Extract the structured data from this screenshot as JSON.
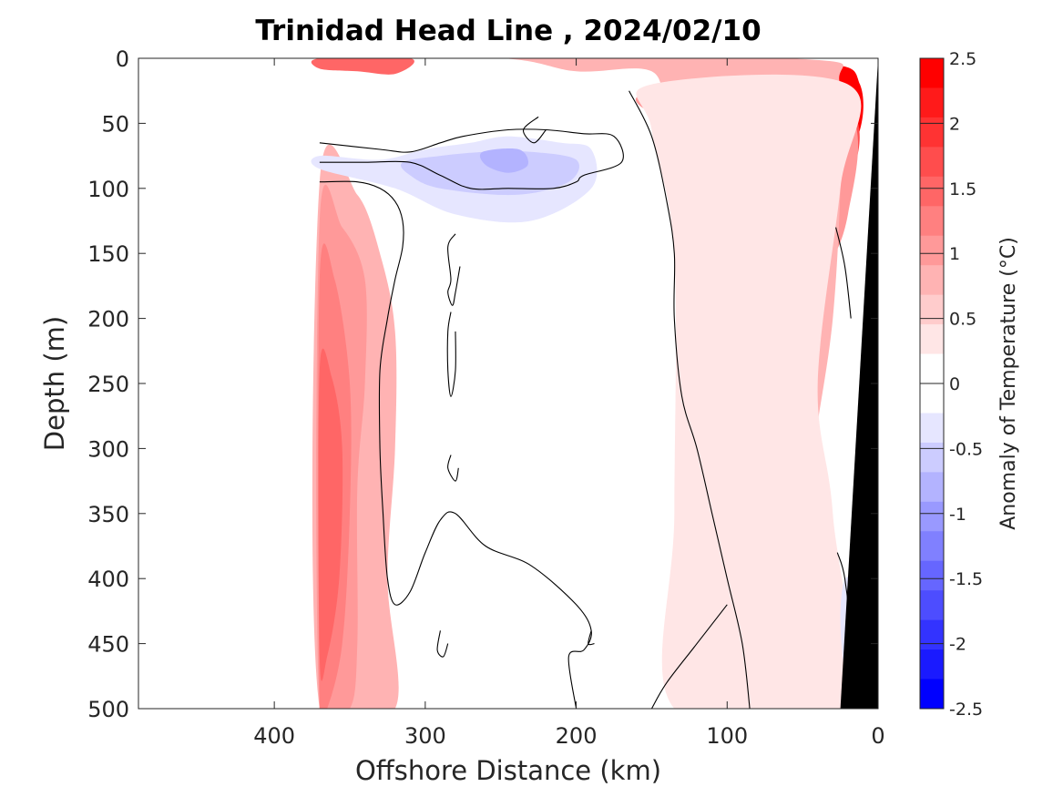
{
  "chart_data": {
    "type": "heatmap",
    "title": "Trinidad Head Line , 2024/02/10",
    "xlabel": "Offshore Distance (km)",
    "ylabel": "Depth (m)",
    "colorbar_label": "Anomaly of Temperature (°C)",
    "xlim": [
      490,
      0
    ],
    "ylim": [
      0,
      500
    ],
    "x_reversed": true,
    "y_reversed": true,
    "xticks": [
      "400",
      "300",
      "200",
      "100",
      "0"
    ],
    "xtick_values": [
      400,
      300,
      200,
      100,
      0
    ],
    "yticks": [
      "0",
      "50",
      "100",
      "150",
      "200",
      "250",
      "300",
      "350",
      "400",
      "450",
      "500"
    ],
    "ytick_values": [
      0,
      50,
      100,
      150,
      200,
      250,
      300,
      350,
      400,
      450,
      500
    ],
    "colorbar": {
      "range": [
        -2.5,
        2.5
      ],
      "step": 0.25,
      "tick_labels": [
        "2.5",
        "2",
        "1.5",
        "1",
        "0.5",
        "0",
        "-0.5",
        "-1",
        "-1.5",
        "-2",
        "-2.5"
      ],
      "tick_values": [
        2.5,
        2,
        1.5,
        1,
        0.5,
        0,
        -0.5,
        -1,
        -1.5,
        -2,
        -2.5
      ],
      "colors_top_to_bottom": [
        "#ff0000",
        "#ff1a1a",
        "#ff3333",
        "#ff4d4d",
        "#ff6666",
        "#ff8080",
        "#ff9999",
        "#ffb3b3",
        "#ffcccc",
        "#ffe6e6",
        "#ffffff",
        "#ffffff",
        "#e6e6ff",
        "#ccccff",
        "#b3b3ff",
        "#9999ff",
        "#8080ff",
        "#6666ff",
        "#4d4dff",
        "#3333ff",
        "#1a1aff",
        "#0000ff"
      ]
    },
    "data_extent_km": [
      370,
      0
    ],
    "field_regions": [
      {
        "level": 1.5,
        "points": [
          [
            370,
            0
          ],
          [
            310,
            0
          ],
          [
            320,
            12
          ],
          [
            345,
            10
          ],
          [
            370,
            8
          ]
        ]
      },
      {
        "level": 2.5,
        "points": [
          [
            115,
            10
          ],
          [
            30,
            5
          ],
          [
            12,
            20
          ],
          [
            12,
            55
          ],
          [
            30,
            95
          ],
          [
            55,
            95
          ],
          [
            75,
            70
          ],
          [
            100,
            50
          ],
          [
            115,
            30
          ]
        ]
      },
      {
        "level": 1.75,
        "points": [
          [
            125,
            30
          ],
          [
            100,
            55
          ],
          [
            80,
            85
          ],
          [
            55,
            110
          ],
          [
            35,
            110
          ],
          [
            15,
            80
          ],
          [
            15,
            45
          ],
          [
            40,
            30
          ]
        ]
      },
      {
        "level": 1.0,
        "points": [
          [
            160,
            30
          ],
          [
            130,
            60
          ],
          [
            110,
            110
          ],
          [
            100,
            150
          ],
          [
            80,
            200
          ],
          [
            40,
            170
          ],
          [
            20,
            120
          ],
          [
            20,
            40
          ],
          [
            100,
            20
          ]
        ]
      },
      {
        "level": 0.75,
        "points": [
          [
            370,
            0
          ],
          [
            250,
            0
          ],
          [
            200,
            10
          ],
          [
            150,
            10
          ],
          [
            140,
            45
          ],
          [
            120,
            70
          ],
          [
            110,
            150
          ],
          [
            115,
            220
          ],
          [
            80,
            260
          ],
          [
            55,
            320
          ],
          [
            50,
            350
          ],
          [
            40,
            280
          ],
          [
            30,
            200
          ],
          [
            25,
            100
          ],
          [
            25,
            20
          ],
          [
            60,
            0
          ]
        ]
      },
      {
        "level": 0.25,
        "points": [
          [
            150,
            55
          ],
          [
            135,
            150
          ],
          [
            135,
            350
          ],
          [
            135,
            500
          ],
          [
            25,
            500
          ],
          [
            30,
            350
          ],
          [
            40,
            250
          ],
          [
            25,
            100
          ],
          [
            20,
            20
          ],
          [
            150,
            20
          ]
        ]
      },
      {
        "level": 0.75,
        "points": [
          [
            370,
            95
          ],
          [
            345,
            105
          ],
          [
            330,
            150
          ],
          [
            320,
            210
          ],
          [
            320,
            300
          ],
          [
            325,
            400
          ],
          [
            320,
            500
          ],
          [
            370,
            500
          ]
        ]
      },
      {
        "level": 1.0,
        "points": [
          [
            370,
            125
          ],
          [
            355,
            130
          ],
          [
            340,
            170
          ],
          [
            340,
            250
          ],
          [
            345,
            330
          ],
          [
            345,
            450
          ],
          [
            350,
            500
          ],
          [
            370,
            500
          ]
        ]
      },
      {
        "level": 1.25,
        "points": [
          [
            370,
            170
          ],
          [
            360,
            170
          ],
          [
            350,
            250
          ],
          [
            350,
            350
          ],
          [
            355,
            450
          ],
          [
            365,
            500
          ],
          [
            370,
            500
          ]
        ]
      },
      {
        "level": 1.5,
        "points": [
          [
            370,
            240
          ],
          [
            362,
            245
          ],
          [
            355,
            300
          ],
          [
            357,
            400
          ],
          [
            365,
            460
          ],
          [
            370,
            460
          ]
        ]
      },
      {
        "level": -0.25,
        "points": [
          [
            370,
            75
          ],
          [
            330,
            78
          ],
          [
            300,
            70
          ],
          [
            270,
            65
          ],
          [
            245,
            60
          ],
          [
            210,
            65
          ],
          [
            190,
            70
          ],
          [
            190,
            100
          ],
          [
            230,
            125
          ],
          [
            280,
            120
          ],
          [
            320,
            100
          ],
          [
            370,
            85
          ]
        ]
      },
      {
        "level": -0.5,
        "points": [
          [
            315,
            80
          ],
          [
            290,
            75
          ],
          [
            260,
            72
          ],
          [
            230,
            72
          ],
          [
            200,
            78
          ],
          [
            205,
            95
          ],
          [
            240,
            105
          ],
          [
            290,
            100
          ],
          [
            310,
            90
          ]
        ]
      },
      {
        "level": -0.75,
        "points": [
          [
            262,
            72
          ],
          [
            238,
            70
          ],
          [
            232,
            82
          ],
          [
            245,
            88
          ],
          [
            260,
            82
          ]
        ]
      },
      {
        "level": -0.25,
        "points": [
          [
            22,
            400
          ],
          [
            15,
            410
          ],
          [
            15,
            460
          ],
          [
            22,
            470
          ],
          [
            25,
            430
          ]
        ]
      }
    ],
    "zero_contours": [
      [
        [
          370,
          65
        ],
        [
          330,
          70
        ],
        [
          310,
          72
        ],
        [
          290,
          65
        ],
        [
          275,
          60
        ],
        [
          245,
          55
        ],
        [
          220,
          55
        ],
        [
          195,
          58
        ],
        [
          175,
          60
        ],
        [
          170,
          80
        ],
        [
          195,
          90
        ],
        [
          200,
          95
        ],
        [
          215,
          100
        ],
        [
          245,
          100
        ],
        [
          270,
          100
        ],
        [
          290,
          90
        ],
        [
          310,
          80
        ],
        [
          340,
          80
        ],
        [
          370,
          80
        ]
      ],
      [
        [
          370,
          95
        ],
        [
          345,
          95
        ],
        [
          330,
          100
        ],
        [
          320,
          110
        ],
        [
          315,
          125
        ],
        [
          315,
          145
        ],
        [
          320,
          170
        ],
        [
          325,
          200
        ],
        [
          330,
          240
        ],
        [
          330,
          300
        ],
        [
          328,
          350
        ],
        [
          325,
          400
        ],
        [
          320,
          420
        ],
        [
          310,
          410
        ],
        [
          300,
          380
        ],
        [
          290,
          355
        ],
        [
          280,
          350
        ],
        [
          260,
          375
        ],
        [
          230,
          390
        ],
        [
          200,
          420
        ],
        [
          190,
          440
        ],
        [
          195,
          455
        ],
        [
          205,
          460
        ],
        [
          200,
          500
        ]
      ],
      [
        [
          280,
          135
        ],
        [
          285,
          145
        ],
        [
          283,
          170
        ],
        [
          285,
          180
        ],
        [
          282,
          190
        ],
        [
          280,
          180
        ],
        [
          277,
          160
        ]
      ],
      [
        [
          283,
          195
        ],
        [
          285,
          210
        ],
        [
          285,
          240
        ],
        [
          283,
          260
        ],
        [
          280,
          240
        ],
        [
          280,
          210
        ]
      ],
      [
        [
          283,
          305
        ],
        [
          285,
          315
        ],
        [
          280,
          325
        ],
        [
          278,
          315
        ]
      ],
      [
        [
          290,
          440
        ],
        [
          292,
          455
        ],
        [
          288,
          460
        ],
        [
          285,
          450
        ]
      ],
      [
        [
          190,
          440
        ],
        [
          192,
          450
        ],
        [
          188,
          450
        ]
      ],
      [
        [
          225,
          45
        ],
        [
          235,
          55
        ],
        [
          228,
          65
        ],
        [
          220,
          55
        ]
      ],
      [
        [
          165,
          25
        ],
        [
          150,
          60
        ],
        [
          140,
          110
        ],
        [
          135,
          150
        ],
        [
          135,
          200
        ],
        [
          130,
          260
        ],
        [
          120,
          300
        ],
        [
          110,
          350
        ],
        [
          100,
          400
        ],
        [
          90,
          450
        ],
        [
          85,
          500
        ]
      ],
      [
        [
          100,
          420
        ],
        [
          120,
          450
        ],
        [
          140,
          480
        ],
        [
          150,
          500
        ]
      ],
      [
        [
          28,
          130
        ],
        [
          22,
          160
        ],
        [
          18,
          200
        ]
      ],
      [
        [
          27,
          380
        ],
        [
          22,
          400
        ],
        [
          18,
          450
        ],
        [
          22,
          490
        ]
      ]
    ],
    "land": [
      [
        25,
        500
      ],
      [
        0,
        500
      ],
      [
        0,
        0
      ],
      [
        25,
        500
      ]
    ]
  }
}
